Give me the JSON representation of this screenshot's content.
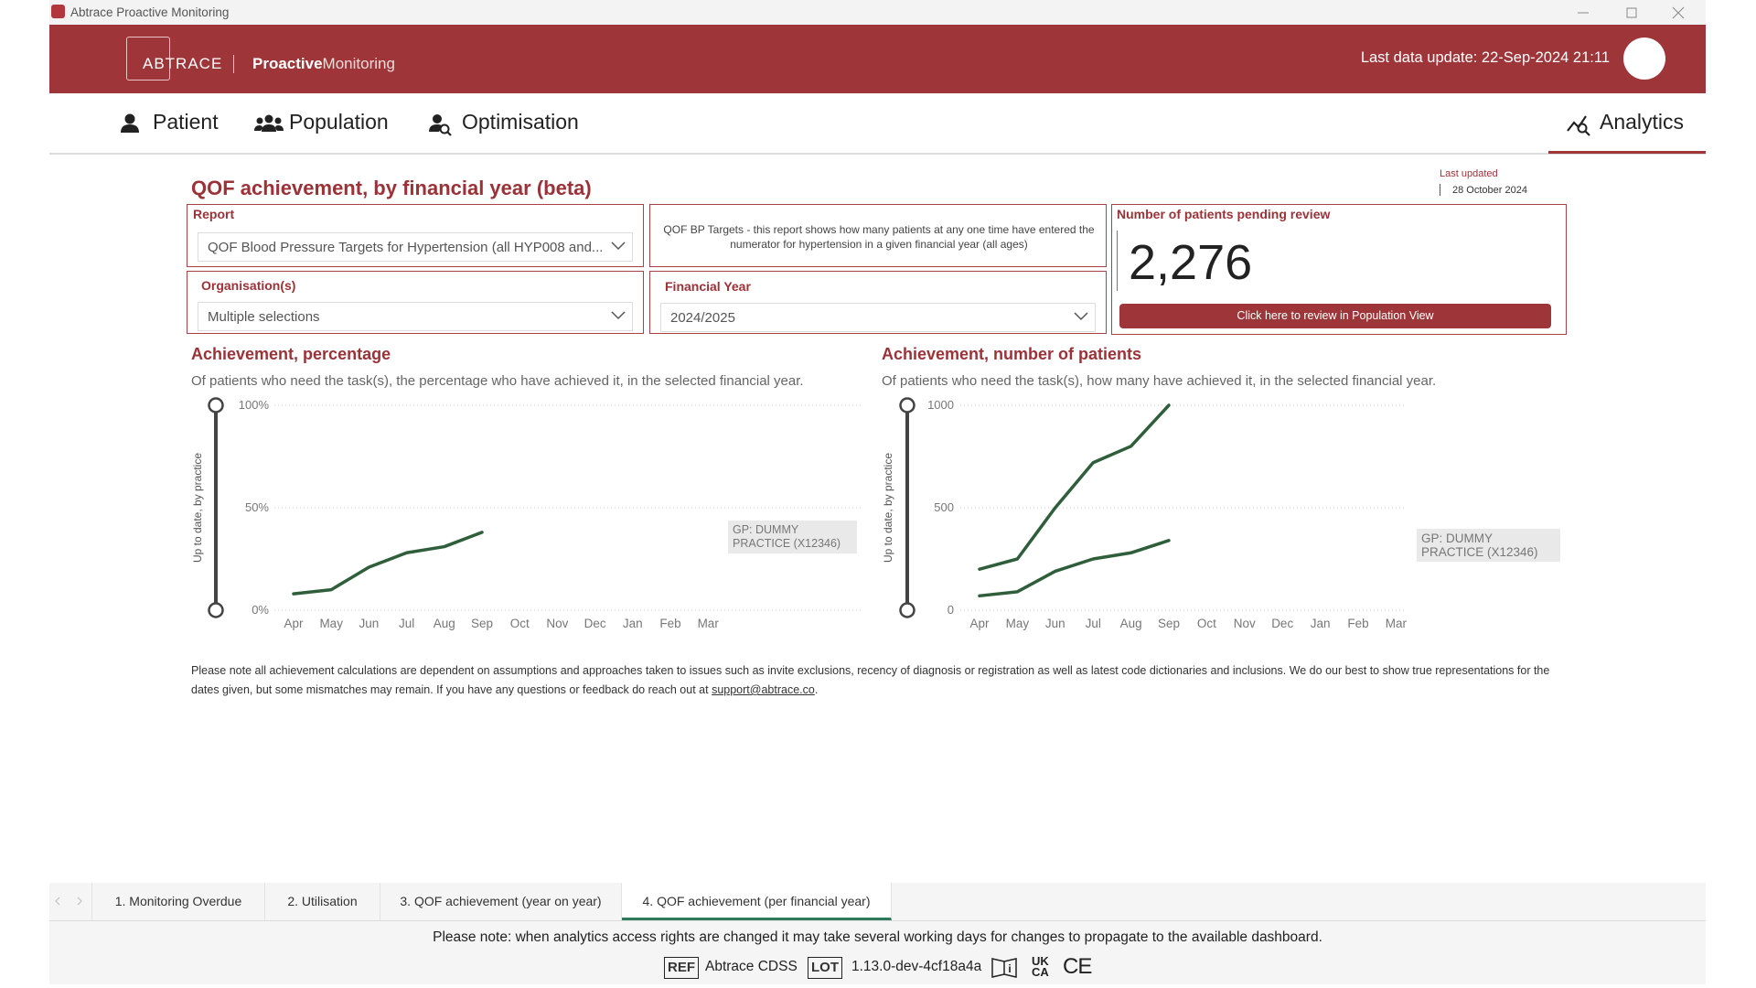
{
  "window": {
    "title": "Abtrace Proactive Monitoring"
  },
  "header": {
    "brand": "ABTRACE",
    "product_bold": "Proactive",
    "product_light": "Monitoring",
    "last_update": "Last data update: 22-Sep-2024 21:11"
  },
  "nav": {
    "items": [
      "Patient",
      "Population",
      "Optimisation"
    ],
    "active": "Analytics"
  },
  "page": {
    "title": "QOF achievement, by financial year (beta)",
    "last_updated_label": "Last updated",
    "last_updated_date": "28 October 2024"
  },
  "filters": {
    "report_label": "Report",
    "report_value": "QOF Blood Pressure Targets for Hypertension (all HYP008 and...",
    "description": "QOF BP Targets - this report shows how many patients at any one time have entered the numerator for hypertension in a given financial year (all ages)",
    "org_label": "Organisation(s)",
    "org_value": "Multiple selections",
    "fy_label": "Financial Year",
    "fy_value": "2024/2025"
  },
  "pending": {
    "label": "Number of patients pending review",
    "value": "2,276",
    "button": "Click here to review in Population View"
  },
  "chart_data": [
    {
      "type": "line",
      "title": "Achievement, percentage",
      "subtitle": "Of patients who need the task(s), the percentage who have achieved it, in the selected financial year.",
      "y_label": "Up to date, by practice",
      "categories": [
        "Apr",
        "May",
        "Jun",
        "Jul",
        "Aug",
        "Sep",
        "Oct",
        "Nov",
        "Dec",
        "Jan",
        "Feb",
        "Mar"
      ],
      "ylim": [
        0,
        100
      ],
      "yticks": [
        {
          "value": 0,
          "label": "0%"
        },
        {
          "value": 50,
          "label": "50%"
        },
        {
          "value": 100,
          "label": "100%"
        }
      ],
      "grid": true,
      "series": [
        {
          "color": "#2f5e3b",
          "values": [
            8,
            10,
            21,
            28,
            31,
            38,
            null,
            null,
            null,
            null,
            null,
            null
          ]
        }
      ],
      "annotation": "GP: DUMMY PRACTICE (X12346)"
    },
    {
      "type": "line",
      "title": "Achievement, number of patients",
      "subtitle": "Of patients who need the task(s), how many have achieved it, in the selected financial year.",
      "y_label": "Up to date, by practice",
      "categories": [
        "Apr",
        "May",
        "Jun",
        "Jul",
        "Aug",
        "Sep",
        "Oct",
        "Nov",
        "Dec",
        "Jan",
        "Feb",
        "Mar"
      ],
      "ylim": [
        0,
        1000
      ],
      "yticks": [
        0,
        500,
        1000
      ],
      "grid": true,
      "series": [
        {
          "color": "#2f5e3b",
          "values": [
            200,
            250,
            500,
            720,
            800,
            1000,
            null,
            null,
            null,
            null,
            null,
            null
          ]
        },
        {
          "color": "#2f5e3b",
          "values": [
            70,
            90,
            190,
            250,
            280,
            340,
            null,
            null,
            null,
            null,
            null,
            null
          ]
        }
      ],
      "annotation": "GP: DUMMY PRACTICE (X12346)"
    }
  ],
  "note": {
    "text": "Please note all achievement calculations are dependent on assumptions and approaches taken to issues such as invite exclusions, recency of diagnosis or registration as well as latest code dictionaries and inclusions. We do our best to show true representations for the dates given, but some mismatches may remain. If you have any questions or feedback do reach out at",
    "link": "support@abtrace.co",
    "end": "."
  },
  "tabs": [
    "1. Monitoring Overdue",
    "2. Utilisation",
    "3. QOF achievement (year on year)",
    "4. QOF achievement (per financial year)"
  ],
  "footer": {
    "notice": "Please note: when analytics access rights are changed it may take several working days for changes to propagate to the available dashboard.",
    "ref": "REF",
    "product": "Abtrace CDSS",
    "lot": "LOT",
    "version": "1.13.0-dev-4cf18a4a",
    "ukca": [
      "UK",
      "CA"
    ],
    "ce": "CE"
  }
}
